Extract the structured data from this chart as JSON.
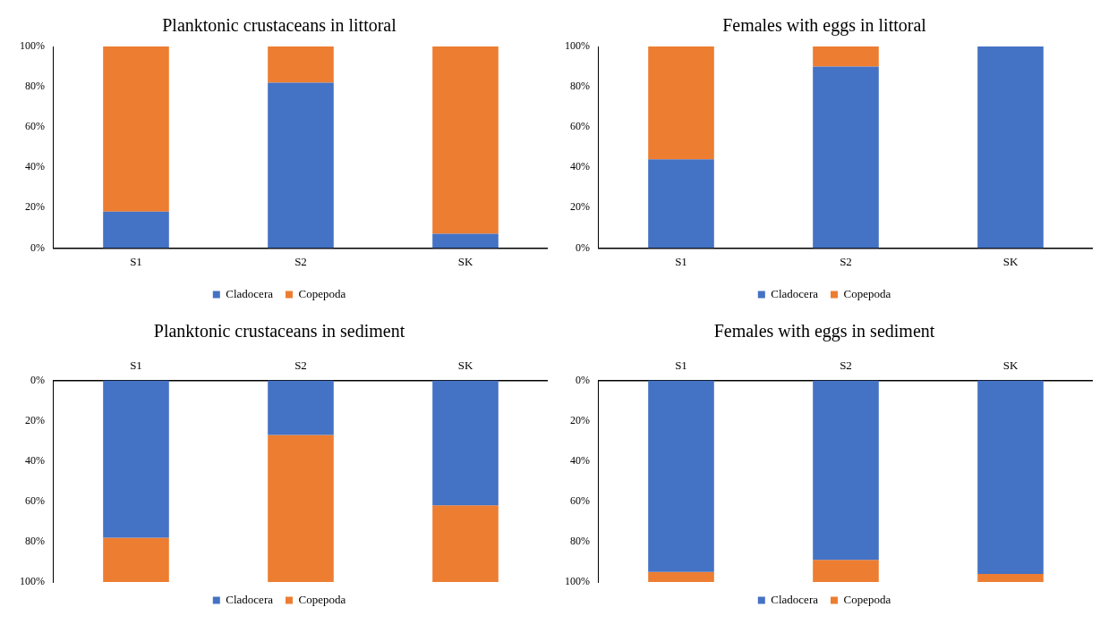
{
  "chart_data": [
    {
      "type": "bar",
      "title": "Planktonic crustaceans in littoral",
      "categories": [
        "S1",
        "S2",
        "SK"
      ],
      "stacked": true,
      "legend": "bottom",
      "grid": false,
      "ylim": [
        0,
        100
      ],
      "yticks": [
        {
          "value": 0,
          "label": "0%"
        },
        {
          "value": 20,
          "label": "20%"
        },
        {
          "value": 40,
          "label": "40%"
        },
        {
          "value": 60,
          "label": "60%"
        },
        {
          "value": 80,
          "label": "80%"
        },
        {
          "value": 100,
          "label": "100%"
        }
      ],
      "series": [
        {
          "name": "Cladocera",
          "color": "#4472c4",
          "values": [
            18,
            82,
            7
          ]
        },
        {
          "name": "Copepoda",
          "color": "#ed7d31",
          "values": [
            82,
            18,
            93
          ]
        }
      ]
    },
    {
      "type": "bar",
      "title": "Females with eggs in littoral",
      "categories": [
        "S1",
        "S2",
        "SK"
      ],
      "stacked": true,
      "legend": "bottom",
      "grid": false,
      "ylim": [
        0,
        100
      ],
      "yticks": [
        {
          "value": 0,
          "label": "0%"
        },
        {
          "value": 20,
          "label": "20%"
        },
        {
          "value": 40,
          "label": "40%"
        },
        {
          "value": 60,
          "label": "60%"
        },
        {
          "value": 80,
          "label": "80%"
        },
        {
          "value": 100,
          "label": "100%"
        }
      ],
      "series": [
        {
          "name": "Cladocera",
          "color": "#4472c4",
          "values": [
            44,
            90,
            100
          ]
        },
        {
          "name": "Copepoda",
          "color": "#ed7d31",
          "values": [
            56,
            10,
            0
          ]
        }
      ]
    },
    {
      "type": "bar",
      "title": "Planktonic crustaceans in sediment",
      "categories": [
        "S1",
        "S2",
        "SK"
      ],
      "stacked": true,
      "legend": "bottom",
      "grid": false,
      "ylim": [
        100,
        0
      ],
      "yticks": [
        {
          "value": 0,
          "label": "0%"
        },
        {
          "value": 20,
          "label": "20%"
        },
        {
          "value": 40,
          "label": "40%"
        },
        {
          "value": 60,
          "label": "60%"
        },
        {
          "value": 80,
          "label": "80%"
        },
        {
          "value": 100,
          "label": "100%"
        }
      ],
      "series": [
        {
          "name": "Cladocera",
          "color": "#4472c4",
          "values": [
            78,
            27,
            62
          ]
        },
        {
          "name": "Copepoda",
          "color": "#ed7d31",
          "values": [
            22,
            73,
            38
          ]
        }
      ]
    },
    {
      "type": "bar",
      "title": "Females with eggs in sediment",
      "categories": [
        "S1",
        "S2",
        "SK"
      ],
      "stacked": true,
      "legend": "bottom",
      "grid": false,
      "ylim": [
        100,
        0
      ],
      "yticks": [
        {
          "value": 0,
          "label": "0%"
        },
        {
          "value": 20,
          "label": "20%"
        },
        {
          "value": 40,
          "label": "40%"
        },
        {
          "value": 60,
          "label": "60%"
        },
        {
          "value": 80,
          "label": "80%"
        },
        {
          "value": 100,
          "label": "100%"
        }
      ],
      "series": [
        {
          "name": "Cladocera",
          "color": "#4472c4",
          "values": [
            95,
            89,
            96
          ]
        },
        {
          "name": "Copepoda",
          "color": "#ed7d31",
          "values": [
            5,
            11,
            4
          ]
        }
      ]
    }
  ]
}
